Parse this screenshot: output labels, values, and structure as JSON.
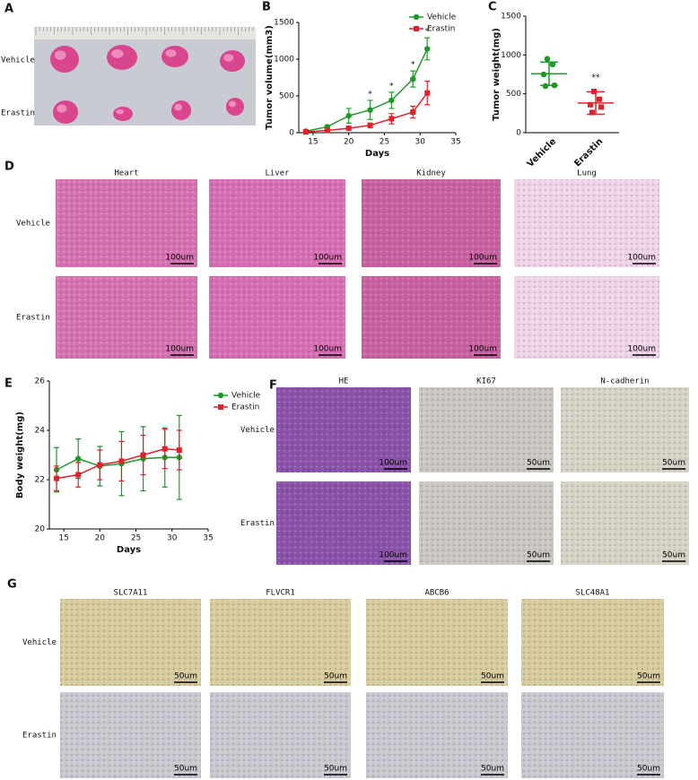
{
  "panels": {
    "A": {
      "label": "A",
      "rows": [
        "Vehicle",
        "Erastin"
      ]
    },
    "B": {
      "label": "B"
    },
    "C": {
      "label": "C"
    },
    "D": {
      "label": "D",
      "columns": [
        "Heart",
        "Liver",
        "Kidney",
        "Lung"
      ],
      "rows": [
        "Vehicle",
        "Erastin"
      ],
      "scale_bars": [
        [
          "100um",
          "100um",
          "100um",
          "100um"
        ],
        [
          "100um",
          "100um",
          "100um",
          "100um"
        ]
      ]
    },
    "E": {
      "label": "E"
    },
    "F": {
      "label": "F",
      "columns": [
        "HE",
        "KI67",
        "N-cadherin"
      ],
      "rows": [
        "Vehicle",
        "Erastin"
      ],
      "scale_bars": [
        [
          "100um",
          "50um",
          "50um"
        ],
        [
          "100um",
          "50um",
          "50um"
        ]
      ]
    },
    "G": {
      "label": "G",
      "columns": [
        "SLC7A11",
        "FLVCR1",
        "ABCB6",
        "SLC48A1"
      ],
      "rows": [
        "Vehicle",
        "Erastin"
      ],
      "scale_bars": [
        [
          "50um",
          "50um",
          "50um",
          "50um"
        ],
        [
          "50um",
          "50um",
          "50um",
          "50um"
        ]
      ]
    }
  },
  "chart_data": [
    {
      "type": "line",
      "ylabel": "Tumor volume(mm3)",
      "xlabel": "Days",
      "x": [
        14,
        17,
        20,
        23,
        26,
        29,
        31
      ],
      "xlim": [
        13,
        35
      ],
      "xticks": [
        15,
        20,
        25,
        30,
        35
      ],
      "ylim": [
        0,
        1500
      ],
      "yticks": [
        0,
        500,
        1000,
        1500
      ],
      "legend": "upper right",
      "series": [
        {
          "name": "Vehicle",
          "color": "#1f9a2a",
          "marker": "circle",
          "values": [
            20,
            80,
            230,
            310,
            440,
            730,
            1140
          ],
          "errors": [
            10,
            20,
            100,
            130,
            110,
            110,
            150
          ]
        },
        {
          "name": "Erastin",
          "color": "#e0202a",
          "marker": "square",
          "values": [
            10,
            30,
            60,
            100,
            190,
            280,
            540
          ],
          "errors": [
            5,
            10,
            20,
            30,
            70,
            80,
            160
          ]
        }
      ],
      "annotations": [
        {
          "x": 23,
          "text": "*"
        },
        {
          "x": 26,
          "text": "*"
        },
        {
          "x": 29,
          "text": "*"
        },
        {
          "x": 31,
          "text": "*"
        }
      ]
    },
    {
      "type": "dot",
      "ylabel": "Tumor weight(mg)",
      "categories": [
        "Vehicle",
        "Erastin"
      ],
      "colors": [
        "#1f9a2a",
        "#e0202a"
      ],
      "points": [
        [
          950,
          880,
          750,
          610,
          600
        ],
        [
          530,
          430,
          360,
          330,
          260
        ]
      ],
      "means": [
        758,
        382
      ],
      "sds": [
        150,
        145
      ],
      "ylim": [
        0,
        1500
      ],
      "yticks": [
        0,
        500,
        1000,
        1500
      ],
      "annotations": [
        {
          "category": "Erastin",
          "text": "**"
        }
      ]
    },
    {
      "type": "line",
      "ylabel": "Body weight(mg)",
      "xlabel": "Days",
      "x": [
        14,
        17,
        20,
        23,
        26,
        29,
        31
      ],
      "xlim": [
        13,
        35
      ],
      "xticks": [
        15,
        20,
        25,
        30,
        35
      ],
      "ylim": [
        20,
        26
      ],
      "yticks": [
        20,
        22,
        24,
        26
      ],
      "legend": "right",
      "series": [
        {
          "name": "Vehicle",
          "color": "#1f9a2a",
          "marker": "circle",
          "values": [
            22.4,
            22.85,
            22.55,
            22.65,
            22.85,
            22.9,
            22.9
          ],
          "errors": [
            0.9,
            0.8,
            0.8,
            1.3,
            1.3,
            1.2,
            1.7
          ]
        },
        {
          "name": "Erastin",
          "color": "#e0202a",
          "marker": "square",
          "values": [
            22.05,
            22.2,
            22.6,
            22.75,
            23.0,
            23.25,
            23.2
          ],
          "errors": [
            0.5,
            0.5,
            0.6,
            0.8,
            0.8,
            0.8,
            0.8
          ]
        }
      ]
    }
  ]
}
